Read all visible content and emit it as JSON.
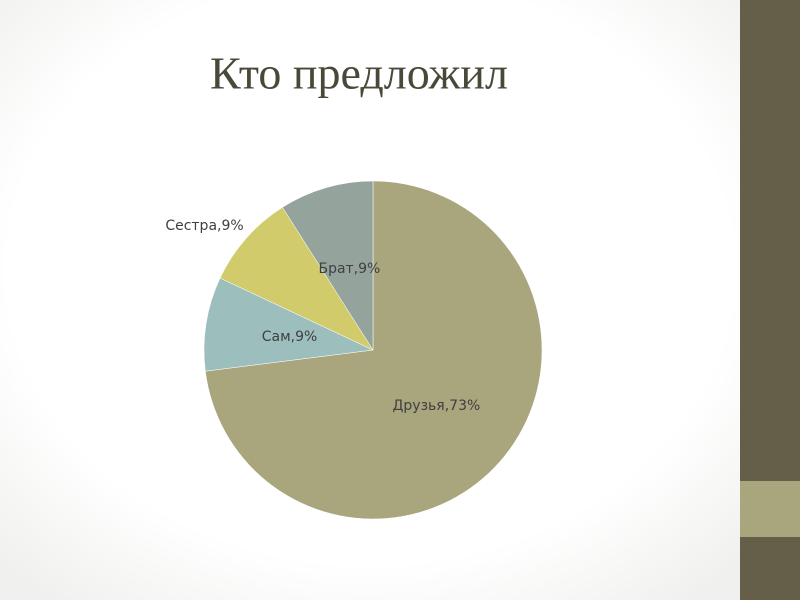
{
  "chart_data": {
    "type": "pie",
    "title": "Кто предложил",
    "categories": [
      "Друзья",
      "Сам",
      "Сестра",
      "Брат"
    ],
    "values": [
      73,
      9,
      9,
      9
    ],
    "value_labels": [
      "Друзья,73%",
      "Сам,9%",
      "Сестра,9%",
      "Брат,9%"
    ],
    "colors": [
      "#a9a57c",
      "#9cbebd",
      "#d2cb6c",
      "#95a39d"
    ]
  }
}
